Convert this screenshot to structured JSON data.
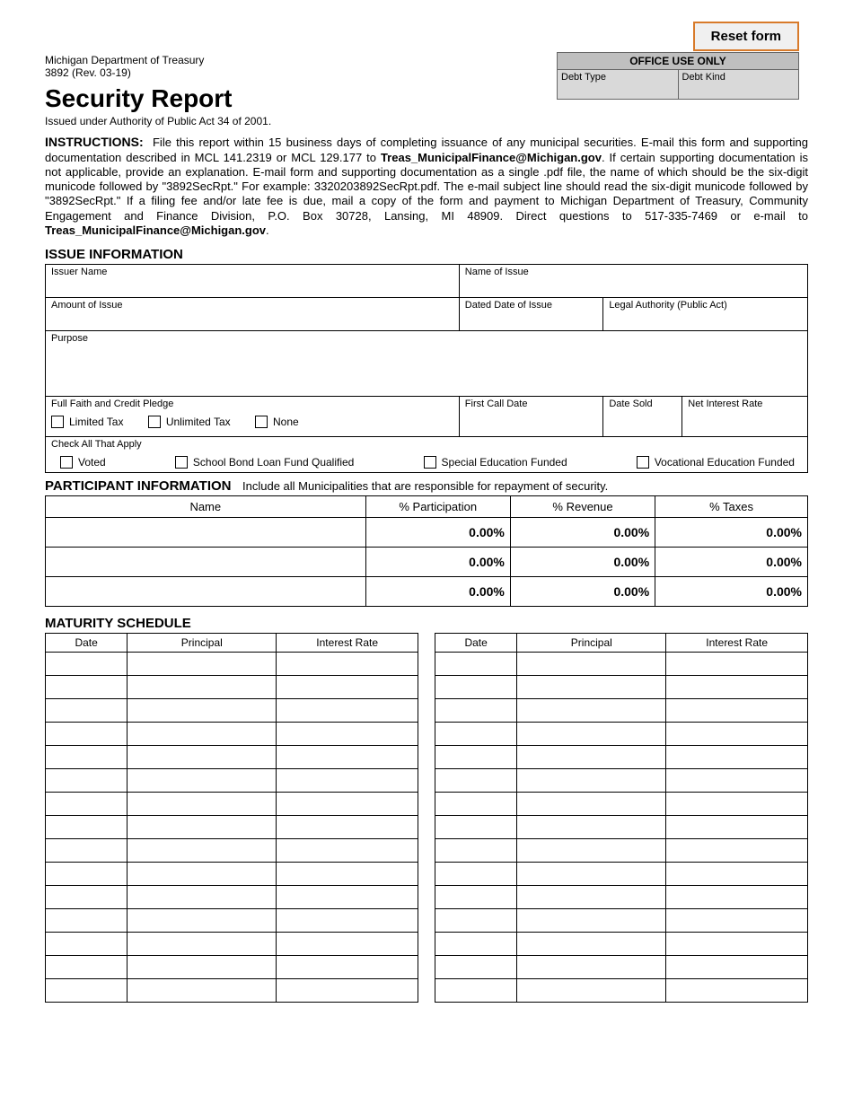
{
  "header": {
    "reset_label": "Reset form",
    "office_use_only": "OFFICE USE ONLY",
    "debt_type": "Debt Type",
    "debt_kind": "Debt Kind",
    "dept": "Michigan Department of Treasury",
    "form_num": "3892 (Rev. 03-19)",
    "title": "Security Report",
    "issued": "Issued under Authority of Public Act 34 of 2001."
  },
  "instructions": {
    "label": "INSTRUCTIONS:",
    "p1a": "File this report within 15 business days of completing issuance of any municipal securities. E-mail this form and supporting documentation described in MCL 141.2319 or MCL 129.177 to ",
    "email1": "Treas_MunicipalFinance@Michigan.gov",
    "p1b": ". If certain supporting documentation is not applicable, provide an explanation. E-mail form and supporting documentation as a single .pdf file, the name of which should be the six-digit municode followed by \"3892SecRpt.\" For example: 3320203892SecRpt.pdf. The e-mail subject line should read the six-digit municode followed by \"3892SecRpt.\" If a filing fee and/or late fee is due, mail a copy of the form and payment to Michigan Department of Treasury, Community Engagement and Finance Division, P.O. Box 30728, Lansing, MI 48909. Direct questions to 517-335-7469 or e-mail to ",
    "email2": "Treas_MunicipalFinance@Michigan.gov",
    "p1c": "."
  },
  "issue": {
    "heading": "ISSUE INFORMATION",
    "issuer_name": "Issuer Name",
    "name_of_issue": "Name of Issue",
    "amount": "Amount of Issue",
    "dated_date": "Dated Date of Issue",
    "legal_auth": "Legal Authority (Public Act)",
    "purpose": "Purpose",
    "pledge": "Full Faith and Credit Pledge",
    "pledge_limited": "Limited Tax",
    "pledge_unlimited": "Unlimited Tax",
    "pledge_none": "None",
    "first_call": "First Call Date",
    "date_sold": "Date Sold",
    "net_interest": "Net Interest Rate",
    "check_all": "Check All That Apply",
    "opt_voted": "Voted",
    "opt_school": "School Bond Loan Fund Qualified",
    "opt_special": "Special Education Funded",
    "opt_voc": "Vocational Education Funded"
  },
  "participant": {
    "heading": "PARTICIPANT INFORMATION",
    "sub": "Include all Municipalities that are responsible for repayment of security.",
    "col_name": "Name",
    "col_part": "% Participation",
    "col_rev": "% Revenue",
    "col_tax": "% Taxes",
    "zero": "0.00%"
  },
  "maturity": {
    "heading": "MATURITY SCHEDULE",
    "col_date": "Date",
    "col_principal": "Principal",
    "col_rate": "Interest Rate",
    "rows": 15
  }
}
